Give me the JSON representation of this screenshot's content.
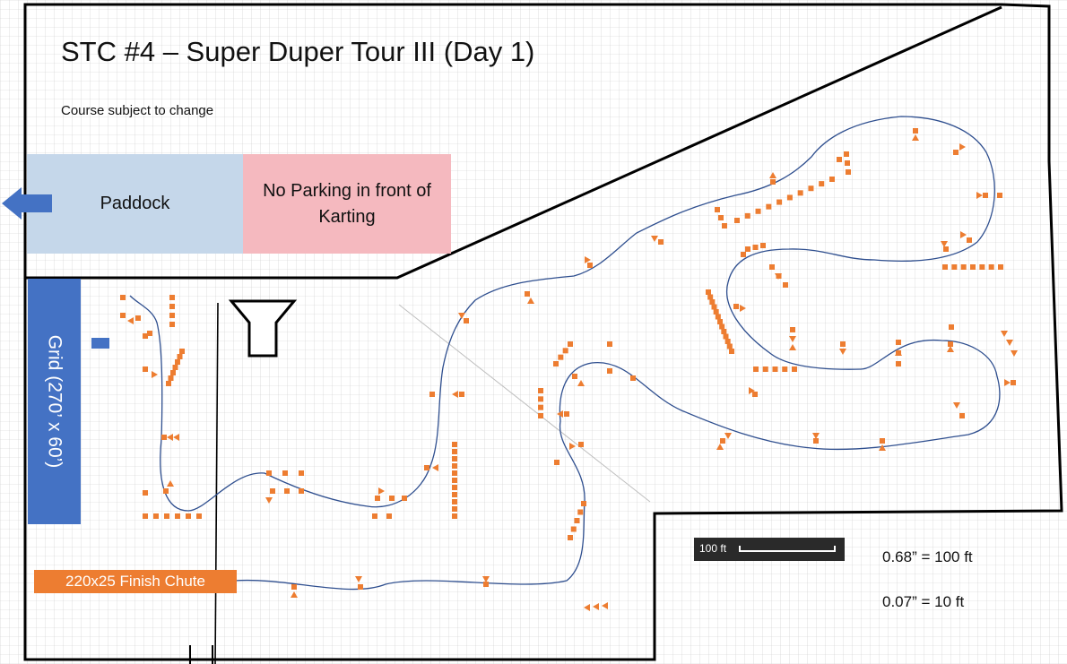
{
  "title": "STC #4 – Super Duper Tour III (Day 1)",
  "subtitle": "Course subject to change",
  "zones": {
    "paddock": "Paddock",
    "no_parking": "No Parking in front of Karting",
    "grid": "Grid (270’ x 60’)",
    "finish_chute": "220x25 Finish Chute"
  },
  "scale": {
    "bar_label": "100 ft",
    "ratio_1": "0.68” = 100 ft",
    "ratio_2": "0.07” = 10 ft"
  },
  "colors": {
    "paddock": "#c5d7ea",
    "no_parking": "#f5b9bf",
    "grid": "#4472c4",
    "finish": "#ed7d31",
    "cone": "#ed7d31",
    "course_line": "#2f4f8f"
  }
}
